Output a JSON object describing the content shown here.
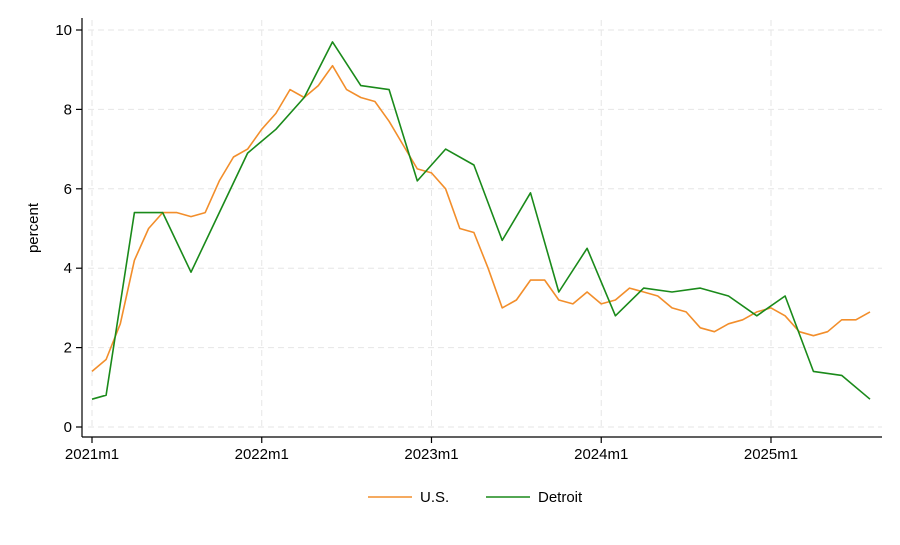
{
  "chart_data": {
    "type": "line",
    "title": "",
    "xlabel": "",
    "ylabel": "percent",
    "ylim": [
      0,
      10
    ],
    "yticks": [
      0,
      2,
      4,
      6,
      8,
      10
    ],
    "xlim": [
      "2021m1",
      "2025m8"
    ],
    "xticks": [
      "2021m1",
      "2022m1",
      "2023m1",
      "2024m1",
      "2025m1"
    ],
    "grid": true,
    "legend_position": "bottom",
    "series": [
      {
        "name": "U.S.",
        "color": "#f28e2b",
        "x": [
          "2021m1",
          "2021m2",
          "2021m3",
          "2021m4",
          "2021m5",
          "2021m6",
          "2021m7",
          "2021m8",
          "2021m9",
          "2021m10",
          "2021m11",
          "2021m12",
          "2022m1",
          "2022m2",
          "2022m3",
          "2022m4",
          "2022m5",
          "2022m6",
          "2022m7",
          "2022m8",
          "2022m9",
          "2022m10",
          "2022m11",
          "2022m12",
          "2023m1",
          "2023m2",
          "2023m3",
          "2023m4",
          "2023m5",
          "2023m6",
          "2023m7",
          "2023m8",
          "2023m9",
          "2023m10",
          "2023m11",
          "2023m12",
          "2024m1",
          "2024m2",
          "2024m3",
          "2024m4",
          "2024m5",
          "2024m6",
          "2024m7",
          "2024m8",
          "2024m9",
          "2024m10",
          "2024m11",
          "2024m12",
          "2025m1",
          "2025m2",
          "2025m3",
          "2025m4",
          "2025m5",
          "2025m6",
          "2025m7",
          "2025m8"
        ],
        "values": [
          1.4,
          1.7,
          2.6,
          4.2,
          5.0,
          5.4,
          5.4,
          5.3,
          5.4,
          6.2,
          6.8,
          7.0,
          7.5,
          7.9,
          8.5,
          8.3,
          8.6,
          9.1,
          8.5,
          8.3,
          8.2,
          7.7,
          7.1,
          6.5,
          6.4,
          6.0,
          5.0,
          4.9,
          4.0,
          3.0,
          3.2,
          3.7,
          3.7,
          3.2,
          3.1,
          3.4,
          3.1,
          3.2,
          3.5,
          3.4,
          3.3,
          3.0,
          2.9,
          2.5,
          2.4,
          2.6,
          2.7,
          2.9,
          3.0,
          2.8,
          2.4,
          2.3,
          2.4,
          2.7,
          2.7,
          2.9
        ]
      },
      {
        "name": "Detroit",
        "color": "#1a8a1a",
        "x": [
          "2021m1",
          "2021m2",
          "2021m4",
          "2021m6",
          "2021m8",
          "2021m10",
          "2021m12",
          "2022m2",
          "2022m4",
          "2022m6",
          "2022m8",
          "2022m10",
          "2022m12",
          "2023m2",
          "2023m4",
          "2023m6",
          "2023m8",
          "2023m10",
          "2023m12",
          "2024m2",
          "2024m4",
          "2024m6",
          "2024m8",
          "2024m10",
          "2024m12",
          "2025m2",
          "2025m4",
          "2025m6",
          "2025m8"
        ],
        "values": [
          0.7,
          0.8,
          5.4,
          5.4,
          3.9,
          5.4,
          6.9,
          7.5,
          8.3,
          9.7,
          8.6,
          8.5,
          6.2,
          7.0,
          6.6,
          4.7,
          5.9,
          3.4,
          4.5,
          2.8,
          3.5,
          3.4,
          3.5,
          3.3,
          2.8,
          3.3,
          1.4,
          1.3,
          0.7
        ]
      }
    ]
  }
}
